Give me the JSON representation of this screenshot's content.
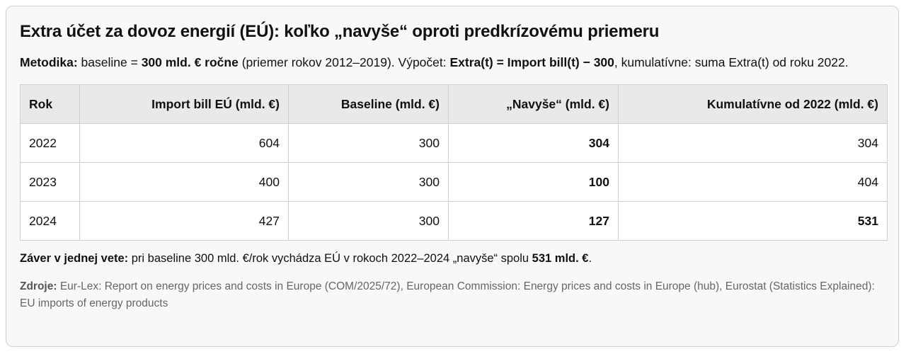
{
  "title": "Extra účet za dovoz energií (EÚ): koľko „navyše“ oproti predkrízovému priemeru",
  "method": [
    "Metodika:",
    " baseline = ",
    "300 mld. € ročne",
    " (priemer rokov 2012–2019). Výpočet: ",
    "Extra(t) = Import bill(t) − 300",
    ", kumulatívne: suma Extra(t) od roku 2022."
  ],
  "table": {
    "headers": [
      "Rok",
      "Import bill EÚ (mld. €)",
      "Baseline (mld. €)",
      "„Navyše“ (mld. €)",
      "Kumulatívne od 2022 (mld. €)"
    ],
    "rows": [
      [
        2022,
        604,
        300,
        304,
        304
      ],
      [
        2023,
        400,
        300,
        100,
        404
      ],
      [
        2024,
        427,
        300,
        127,
        531
      ]
    ]
  },
  "conclusion": [
    "Záver v jednej vete:",
    " pri baseline 300 mld. €/rok vychádza EÚ v rokoch 2022–2024 „navyše“ spolu ",
    "531 mld. €",
    "."
  ],
  "sources": [
    "Zdroje:",
    " Eur-Lex: Report on energy prices and costs in Europe (COM/2025/72), European Commission: Energy prices and costs in Europe (hub), Eurostat (Statistics Explained): EU imports of energy products"
  ]
}
